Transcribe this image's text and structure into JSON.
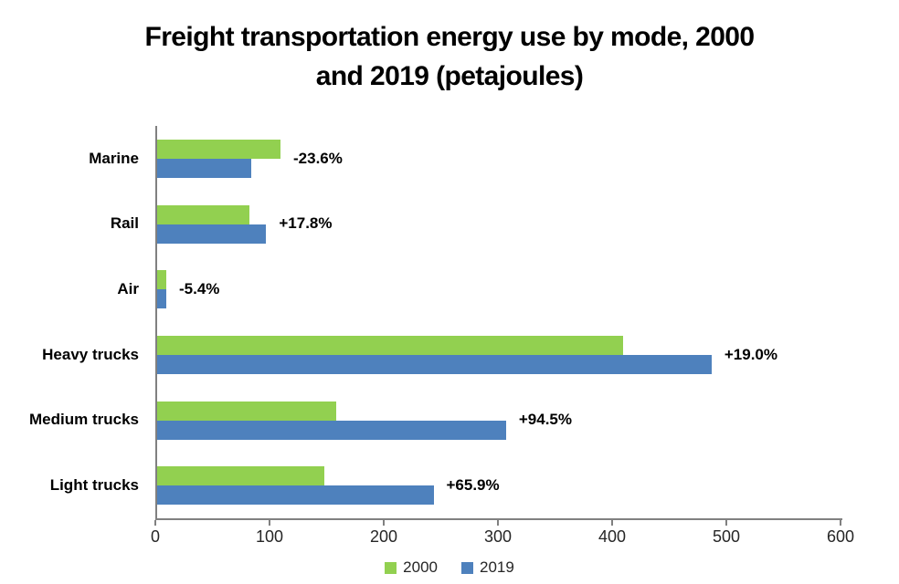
{
  "chart_data": {
    "type": "bar",
    "orientation": "horizontal",
    "title": "Freight transportation energy use by mode, 2000 and 2019 (petajoules)",
    "title_lines": [
      "Freight transportation energy use by mode, 2000",
      "and 2019 (petajoules)"
    ],
    "categories": [
      "Marine",
      "Rail",
      "Air",
      "Heavy trucks",
      "Medium trucks",
      "Light trucks"
    ],
    "series": [
      {
        "name": "2000",
        "color": "#92D050",
        "values": [
          108,
          81,
          8,
          408,
          157,
          146
        ]
      },
      {
        "name": "2019",
        "color": "#4E81BD",
        "values": [
          82.5,
          95.5,
          7.6,
          485.5,
          305.5,
          242
        ]
      }
    ],
    "change_labels": [
      "-23.6%",
      "+17.8%",
      "-5.4%",
      "+19.0%",
      "+94.5%",
      "+65.9%"
    ],
    "xlabel": "",
    "ylabel": "",
    "xlim": [
      0,
      600
    ],
    "x_ticks": [
      0,
      100,
      200,
      300,
      400,
      500,
      600
    ],
    "grid": false,
    "legend_position": "bottom",
    "axis_color": "#808080",
    "tick_label_color": "#262626"
  }
}
